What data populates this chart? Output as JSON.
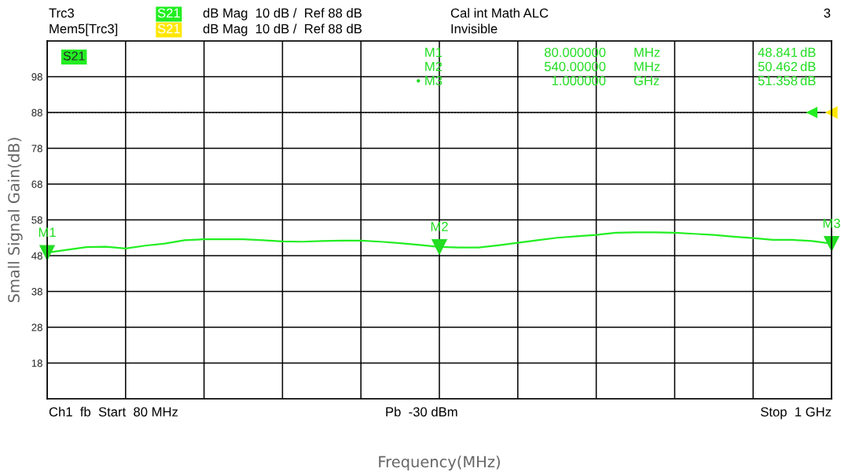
{
  "chart_data": {
    "type": "line",
    "xlabel": "Frequency(MHz)",
    "ylabel": "Small Signal Gain(dB)",
    "categories": [
      null,
      null,
      null,
      null,
      null,
      null,
      null,
      null,
      null,
      null,
      null,
      null,
      null,
      null,
      null,
      null,
      null,
      null,
      null,
      null,
      null,
      null,
      null,
      null,
      null,
      null,
      null,
      null,
      null,
      null,
      null,
      null,
      null,
      null,
      null,
      null,
      null,
      null,
      null,
      null,
      null
    ],
    "series": [
      {
        "name": "S21",
        "color": "#22ee22",
        "values": [
          48.841,
          49.6,
          50.4,
          50.5,
          50.0,
          50.8,
          51.4,
          52.3,
          52.6,
          52.6,
          52.6,
          52.3,
          52.0,
          51.9,
          52.1,
          52.2,
          52.2,
          51.9,
          51.5,
          51.0,
          50.462,
          50.3,
          50.3,
          50.9,
          51.6,
          52.3,
          53.0,
          53.4,
          53.8,
          54.4,
          54.5,
          54.5,
          54.4,
          54.1,
          53.8,
          53.3,
          52.9,
          52.4,
          52.4,
          52.1,
          51.358
        ]
      }
    ],
    "ylim": [
      8,
      108
    ],
    "yticks": [
      {
        "value": 8,
        "label": null
      },
      18,
      28,
      38,
      48,
      58,
      68,
      78,
      88,
      98,
      {
        "value": 108,
        "label": null
      }
    ],
    "tick_labels": "y",
    "grid": true,
    "legend": false,
    "marker": "none",
    "line_style": "solid",
    "ref_lines": [
      {
        "axis": "y",
        "value": 88,
        "line_style": "dotted"
      }
    ],
    "annotations": [
      "Trc3",
      "S21",
      "dB Mag  10 dB /  Ref 88 dB",
      "Cal int Math ALC",
      "3",
      "Mem5[Trc3]",
      "S21",
      "dB Mag  10 dB /  Ref 88 dB",
      "Invisible",
      "M1",
      "80.000000",
      "MHz",
      "48.841",
      "dB",
      "M2",
      "540.00000",
      "MHz",
      "50.462",
      "dB",
      "• M3",
      "1.000000",
      "GHz",
      "51.358",
      "dB",
      "Ch1  fb  Start  80 MHz",
      "Pb  -30 dBm",
      "Stop  1 GHz",
      "M1",
      "M2",
      "M3"
    ]
  }
}
